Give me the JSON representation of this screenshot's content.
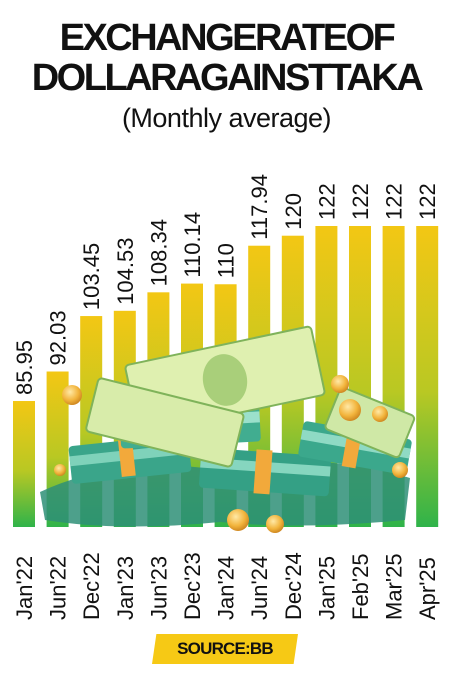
{
  "title_lines": [
    "EXCHANGERATEOF",
    "DOLLARAGAINSTTAKA"
  ],
  "subtitle": "(Monthly average)",
  "source": "SOURCE:BB",
  "colors": {
    "bar_top": "#f3c714",
    "bar_bottom": "#2fb34a",
    "text": "#111111",
    "source_bg": "#f6c915"
  },
  "chart_data": {
    "type": "bar",
    "title": "EXCHANGERATEOF DOLLARAGAINSTTAKA",
    "subtitle": "(Monthly average)",
    "categories": [
      "Jan'22",
      "Jun'22",
      "Dec'22",
      "Jan'23",
      "Jun'23",
      "Dec'23",
      "Jan'24",
      "Jun'24",
      "Dec'24",
      "Jan'25",
      "Feb'25",
      "Mar'25",
      "Apr'25"
    ],
    "values": [
      85.95,
      92.03,
      103.45,
      104.53,
      108.34,
      110.14,
      110,
      117.94,
      120,
      122,
      122,
      122,
      122
    ],
    "data_labels": [
      "85.95",
      "92.03",
      "103.45",
      "104.53",
      "108.34",
      "110.14",
      "110",
      "117.94",
      "120",
      "122",
      "122",
      "122",
      "122"
    ],
    "xlabel": "",
    "ylabel": "",
    "ylim": [
      0,
      122
    ],
    "grid": false,
    "legend": "none",
    "source": "SOURCE:BB"
  }
}
